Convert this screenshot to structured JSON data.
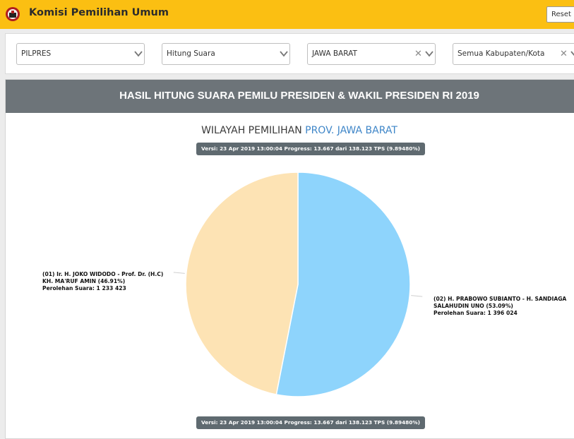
{
  "header": {
    "title": "Komisi Pemilihan Umum",
    "reset_label": "Reset Filter",
    "logo_icon": "kpu-logo-icon"
  },
  "filters": {
    "election": "PILPRES",
    "mode": "Hitung Suara",
    "province": "JAWA BARAT",
    "regency": "Semua Kabupaten/Kota"
  },
  "panel": {
    "title": "HASIL HITUNG SUARA PEMILU PRESIDEN & WAKIL PRESIDEN RI 2019",
    "region_prefix": "WILAYAH PEMILIHAN",
    "region_name": "PROV. JAWA BARAT",
    "version_top": "Versi: 23 Apr 2019 13:00:04 Progress: 13.667 dari 138.123 TPS (9.89480%)",
    "version_bottom": "Versi: 23 Apr 2019 13:00:04 Progress: 13.667 dari 138.123 TPS (9.89480%)"
  },
  "chart_data": {
    "type": "pie",
    "slices": [
      {
        "label_line1": "(01) Ir. H. JOKO WIDODO - Prof. Dr. (H.C)",
        "label_line2": "KH. MA'RUF AMIN (46.91%)",
        "votes_text": "Perolehan Suara: 1 233 423",
        "percent": 46.91,
        "votes": 1233423,
        "color": "#fde3b4"
      },
      {
        "label_line1": "(02) H. PRABOWO SUBIANTO - H. SANDIAGA",
        "label_line2": "SALAHUDIN UNO (53.09%)",
        "votes_text": "Perolehan Suara: 1 396 024",
        "percent": 53.09,
        "votes": 1396024,
        "color": "#8ed4fc"
      }
    ]
  },
  "colors": {
    "topbar": "#fbbf12",
    "panel_header": "#6d7479",
    "region_accent": "#3f86c8",
    "badge": "#5f6a70"
  }
}
